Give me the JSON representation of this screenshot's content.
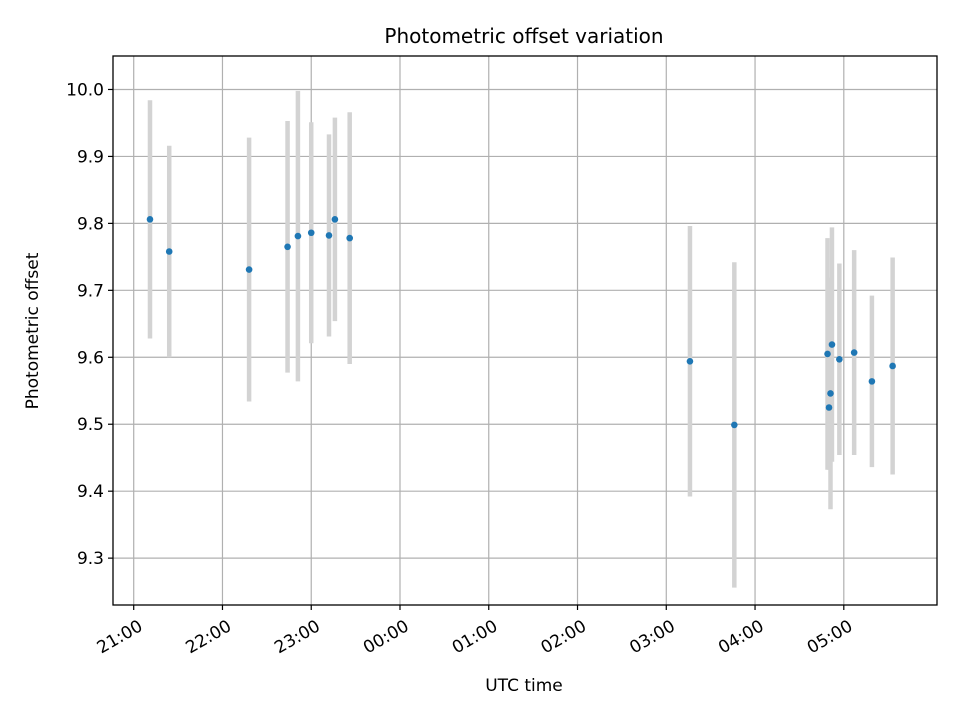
{
  "chart_data": {
    "type": "scatter",
    "title": "Photometric offset variation",
    "xlabel": "UTC time",
    "ylabel": "Photometric offset",
    "xlim": [
      "20:46",
      "06:03"
    ],
    "ylim": [
      9.23,
      10.05
    ],
    "x_ticks": [
      "21:00",
      "22:00",
      "23:00",
      "00:00",
      "01:00",
      "02:00",
      "03:00",
      "04:00",
      "05:00"
    ],
    "y_ticks": [
      "9.3",
      "9.4",
      "9.5",
      "9.6",
      "9.7",
      "9.8",
      "9.9",
      "10.0"
    ],
    "grid": true,
    "legend": "none",
    "colors": {
      "points": "#1f77b4",
      "errorbars": "#d3d3d3",
      "grid": "#b0b0b0"
    },
    "series": [
      {
        "points": [
          {
            "t": "21:11",
            "y": 9.806,
            "err": 0.178
          },
          {
            "t": "21:24",
            "y": 9.758,
            "err": 0.158
          },
          {
            "t": "22:18",
            "y": 9.731,
            "err": 0.197
          },
          {
            "t": "22:44",
            "y": 9.765,
            "err": 0.188
          },
          {
            "t": "22:51",
            "y": 9.781,
            "err": 0.217
          },
          {
            "t": "23:00",
            "y": 9.786,
            "err": 0.165
          },
          {
            "t": "23:12",
            "y": 9.782,
            "err": 0.151
          },
          {
            "t": "23:16",
            "y": 9.806,
            "err": 0.152
          },
          {
            "t": "23:26",
            "y": 9.778,
            "err": 0.188
          },
          {
            "t": "03:16",
            "y": 9.594,
            "err": 0.202
          },
          {
            "t": "03:46",
            "y": 9.499,
            "err": 0.243
          },
          {
            "t": "04:49",
            "y": 9.605,
            "err": 0.173
          },
          {
            "t": "04:50",
            "y": 9.525,
            "err": 0.093
          },
          {
            "t": "04:51",
            "y": 9.546,
            "err": 0.173
          },
          {
            "t": "04:52",
            "y": 9.619,
            "err": 0.175
          },
          {
            "t": "04:57",
            "y": 9.597,
            "err": 0.143
          },
          {
            "t": "05:07",
            "y": 9.607,
            "err": 0.153
          },
          {
            "t": "05:19",
            "y": 9.564,
            "err": 0.128
          },
          {
            "t": "05:33",
            "y": 9.587,
            "err": 0.162
          }
        ]
      }
    ]
  }
}
